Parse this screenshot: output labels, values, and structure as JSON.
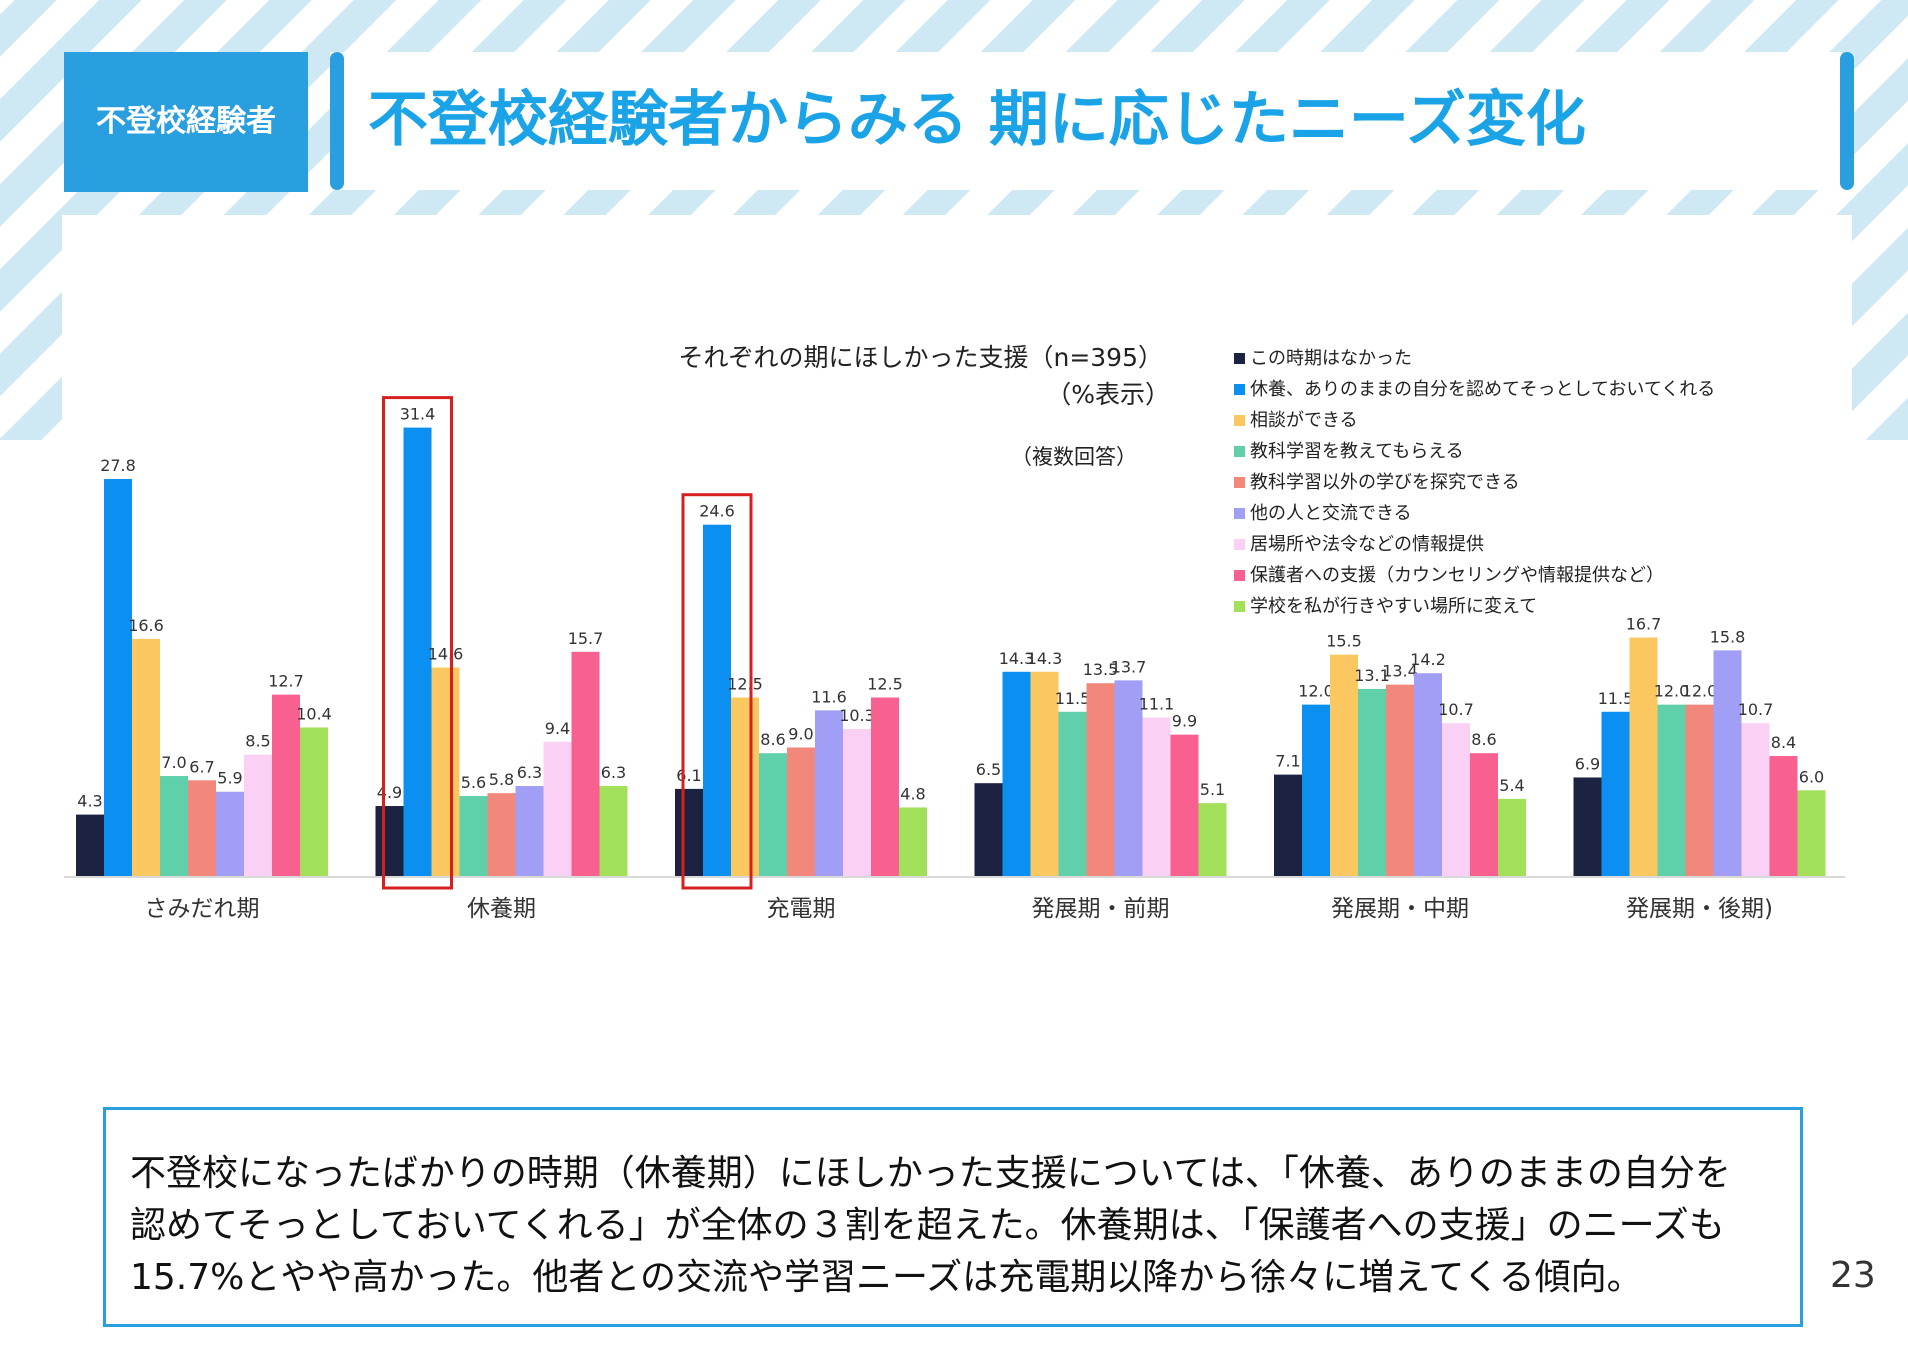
{
  "header": {
    "tag": "不登校経験者",
    "title": "不登校経験者からみる 期に応じたニーズ変化"
  },
  "chart_data": {
    "type": "bar",
    "title": "それぞれの期にほしかった支援（n=395）",
    "unit_note": "（%表示）",
    "multi_note": "（複数回答）",
    "categories": [
      "さみだれ期",
      "休養期",
      "充電期",
      "発展期・前期",
      "発展期・中期",
      "発展期・後期)"
    ],
    "ylim": [
      0,
      33
    ],
    "legend_position": "top-right",
    "series": [
      {
        "name": "この時期はなかった",
        "color": "#1c2340",
        "values": [
          4.3,
          4.9,
          6.1,
          6.5,
          7.1,
          6.9
        ]
      },
      {
        "name": "休養、ありのままの自分を認めてそっとしておいてくれる",
        "color": "#0b8ff0",
        "values": [
          27.8,
          31.4,
          24.6,
          14.3,
          12.0,
          11.5
        ]
      },
      {
        "name": "相談ができる",
        "color": "#fbc760",
        "values": [
          16.6,
          14.6,
          12.5,
          14.3,
          15.5,
          16.7
        ]
      },
      {
        "name": "教科学習を教えてもらえる",
        "color": "#5fd0a9",
        "values": [
          7.0,
          5.6,
          8.6,
          11.5,
          13.1,
          12.0
        ]
      },
      {
        "name": "教科学習以外の学びを探究できる",
        "color": "#f2887c",
        "values": [
          6.7,
          5.8,
          9.0,
          13.5,
          13.4,
          12.0
        ]
      },
      {
        "name": "他の人と交流できる",
        "color": "#a19ef5",
        "values": [
          5.9,
          6.3,
          11.6,
          13.7,
          14.2,
          15.8
        ]
      },
      {
        "name": "居場所や法令などの情報提供",
        "color": "#fbd0f5",
        "values": [
          8.5,
          9.4,
          10.3,
          11.1,
          10.7,
          10.7
        ]
      },
      {
        "name": "保護者への支援（カウンセリングや情報提供など）",
        "color": "#f7608f",
        "values": [
          12.7,
          15.7,
          12.5,
          9.9,
          8.6,
          8.4
        ]
      },
      {
        "name": "学校を私が行きやすい場所に変えて",
        "color": "#a3e05a",
        "values": [
          10.4,
          6.3,
          4.8,
          5.1,
          5.4,
          6.0
        ]
      }
    ],
    "highlights": [
      {
        "category": "休養期",
        "series": "休養、ありのままの自分を認めてそっとしておいてくれる"
      },
      {
        "category": "充電期",
        "series": "休養、ありのままの自分を認めてそっとしておいてくれる"
      }
    ]
  },
  "summary": {
    "lines": [
      "不登校になったばかりの時期（休養期）にほしかった支援については、「休養、ありのままの自分を",
      "認めてそっとしておいてくれる」が全体の３割を超えた。休養期は、「保護者への支援」のニーズも",
      "15.7%とやや高かった。他者との交流や学習ニーズは充電期以降から徐々に増えてくる傾向。"
    ]
  },
  "page_number": "23",
  "colors": {
    "accent": "#2a9fe0",
    "title_text": "#1ba3e8",
    "highlight_box": "#d62020"
  }
}
